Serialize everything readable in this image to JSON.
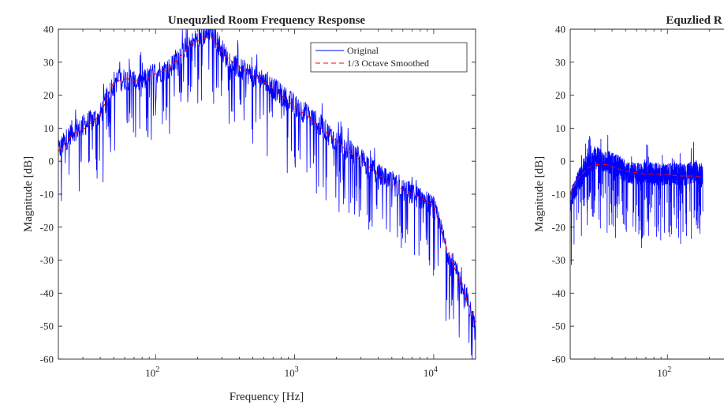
{
  "chart_data": [
    {
      "type": "line",
      "title": "Unequzlied Room Frequency Response",
      "xlabel": "Frequency [Hz]",
      "ylabel": "Magnitude [dB]",
      "xscale": "log",
      "xlim": [
        20,
        20000
      ],
      "ylim": [
        -60,
        40
      ],
      "yticks": [
        -60,
        -50,
        -40,
        -30,
        -20,
        -10,
        0,
        10,
        20,
        30,
        40
      ],
      "ytick_labels": [
        "-60",
        "-50",
        "-40",
        "-30",
        "-20",
        "-10",
        "0",
        "10",
        "20",
        "30",
        "40"
      ],
      "xticks": [
        100,
        1000,
        10000
      ],
      "xtick_base": "10",
      "xtick_exponents": [
        "2",
        "3",
        "4"
      ],
      "grid": false,
      "legend_position": "top-right",
      "series": [
        {
          "name": "Original",
          "color": "#0000ff",
          "style": "solid",
          "noisy": true,
          "x": [
            20,
            25,
            31,
            40,
            50,
            63,
            80,
            100,
            125,
            160,
            200,
            250,
            315,
            400,
            500,
            630,
            800,
            1000,
            1250,
            1600,
            2000,
            2500,
            3150,
            4000,
            5000,
            6300,
            8000,
            10000,
            12500,
            16000,
            20000
          ],
          "y": [
            3,
            9,
            11,
            14,
            24,
            25,
            24,
            27,
            28,
            34,
            37,
            40,
            32,
            28,
            26,
            24,
            20,
            17,
            14,
            10,
            6,
            3,
            0,
            -4,
            -7,
            -9,
            -11,
            -14,
            -27,
            -38,
            -50
          ]
        },
        {
          "name": "1/3 Octave Smoothed",
          "color": "#ff0000",
          "style": "dashed",
          "x": [
            20,
            25,
            31,
            40,
            50,
            63,
            80,
            100,
            125,
            160,
            200,
            250,
            315,
            400,
            500,
            630,
            800,
            1000,
            1250,
            1600,
            2000,
            2500,
            3150,
            4000,
            5000,
            6300,
            8000,
            10000,
            12500,
            16000,
            20000
          ],
          "y": [
            3,
            8,
            10,
            14,
            24,
            25,
            24,
            26.5,
            28,
            33,
            36.5,
            38,
            32,
            28.5,
            26,
            23.5,
            20,
            16.5,
            13.5,
            9.5,
            6,
            2.5,
            -0.5,
            -4,
            -7,
            -9,
            -11,
            -13.5,
            -27,
            -38,
            -49
          ]
        }
      ]
    },
    {
      "type": "line",
      "title": "Equzlied R",
      "xlabel": "",
      "ylabel": "Magnitude [dB]",
      "xscale": "log",
      "ylim": [
        -60,
        40
      ],
      "yticks": [
        -60,
        -50,
        -40,
        -30,
        -20,
        -10,
        0,
        10,
        20,
        30,
        40
      ],
      "ytick_labels": [
        "-60",
        "-50",
        "-40",
        "-30",
        "-20",
        "-10",
        "0",
        "10",
        "20",
        "30",
        "40"
      ],
      "xticks": [
        100
      ],
      "xtick_base": "10",
      "xtick_exponents": [
        "2"
      ],
      "grid": false,
      "cropped_right": true,
      "series": [
        {
          "name": "Original",
          "color": "#0000ff",
          "style": "solid",
          "noisy": true,
          "x": [
            20,
            23,
            27,
            31,
            36,
            42,
            50,
            60,
            70,
            80,
            100,
            120,
            140,
            160,
            180
          ],
          "y": [
            -12,
            -6,
            -1,
            1,
            0,
            -1,
            -3,
            -4,
            -3,
            -4,
            -4,
            -4,
            -4,
            -3,
            -5
          ]
        },
        {
          "name": "1/3 Octave Smoothed",
          "color": "#ff0000",
          "style": "dashed",
          "x": [
            20,
            23,
            27,
            31,
            36,
            42,
            50,
            60,
            70,
            80,
            100,
            120,
            140,
            160,
            180
          ],
          "y": [
            -10,
            -5,
            -2,
            -1,
            -1,
            -2,
            -3,
            -3.5,
            -4,
            -4,
            -4,
            -4.5,
            -4.5,
            -4.5,
            -5
          ]
        }
      ]
    }
  ]
}
